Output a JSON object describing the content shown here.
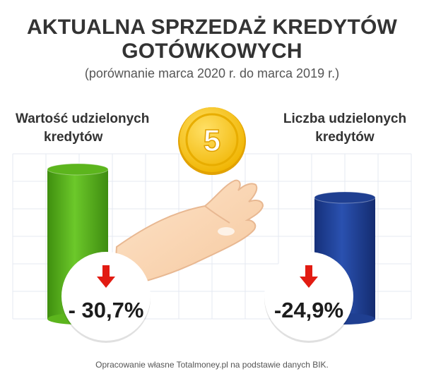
{
  "title_line1": "AKTUALNA SPRZEDAŻ KREDYTÓW",
  "title_line2": "GOTÓWKOWYCH",
  "subtitle": "(porównanie marca 2020 r. do marca 2019 r.)",
  "left_label_line1": "Wartość udzielonych",
  "left_label_line2": "kredytów",
  "right_label_line1": "Liczba udzielonych",
  "right_label_line2": "kredytów",
  "footnote": "Opracowanie własne Totalmoney.pl na podstawie danych BIK.",
  "coin_label": "5",
  "colors": {
    "left_bar": "#5cb51d",
    "right_bar": "#1f3f91",
    "arrow": "#e21b12",
    "coin": "#f5c518"
  },
  "icons": [
    "coin-icon",
    "hand-icon",
    "down-arrow-icon"
  ],
  "chart_data": {
    "type": "bar",
    "categories": [
      "Wartość udzielonych kredytów",
      "Liczba udzielonych kredytów"
    ],
    "values": [
      -30.7,
      -24.9
    ],
    "value_labels": [
      "- 30,7%",
      "-24,9%"
    ],
    "title": "AKTUALNA SPRZEDAŻ KREDYTÓW GOTÓWKOWYCH",
    "subtitle": "(porównanie marca 2020 r. do marca 2019 r.)",
    "grid": true
  }
}
